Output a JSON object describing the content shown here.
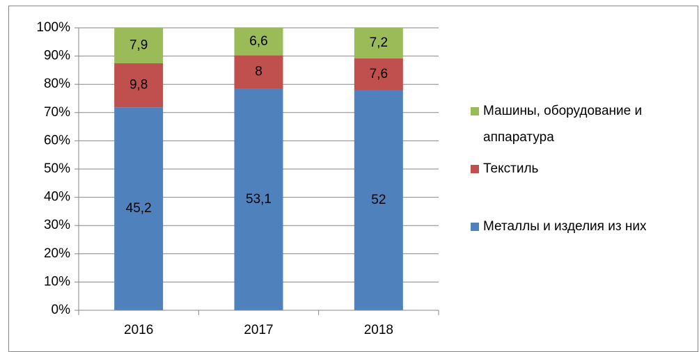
{
  "chart_data": {
    "type": "stacked_percent_bar",
    "categories": [
      "2016",
      "2017",
      "2018"
    ],
    "series": [
      {
        "name": "Металлы и изделия из них",
        "color": "#4f81bd",
        "values": [
          45.2,
          53.1,
          52
        ],
        "value_labels": [
          "45,2",
          "53,1",
          "52"
        ]
      },
      {
        "name": "Текстиль",
        "color": "#c0504d",
        "values": [
          9.8,
          8,
          7.6
        ],
        "value_labels": [
          "9,8",
          "8",
          "7,6"
        ]
      },
      {
        "name": "Машины, оборудование и аппаратура",
        "color": "#9bbb59",
        "values": [
          7.9,
          6.6,
          7.2
        ],
        "value_labels": [
          "7,9",
          "6,6",
          "7,2"
        ]
      }
    ],
    "ylim": [
      0,
      100
    ],
    "yticks": [
      {
        "value": 0,
        "label": "0%"
      },
      {
        "value": 10,
        "label": "10%"
      },
      {
        "value": 20,
        "label": "20%"
      },
      {
        "value": 30,
        "label": "30%"
      },
      {
        "value": 40,
        "label": "40%"
      },
      {
        "value": 50,
        "label": "50%"
      },
      {
        "value": 60,
        "label": "60%"
      },
      {
        "value": 70,
        "label": "70%"
      },
      {
        "value": 80,
        "label": "80%"
      },
      {
        "value": 90,
        "label": "90%"
      },
      {
        "value": 100,
        "label": "100%"
      }
    ],
    "grid": true,
    "legend": "right"
  }
}
